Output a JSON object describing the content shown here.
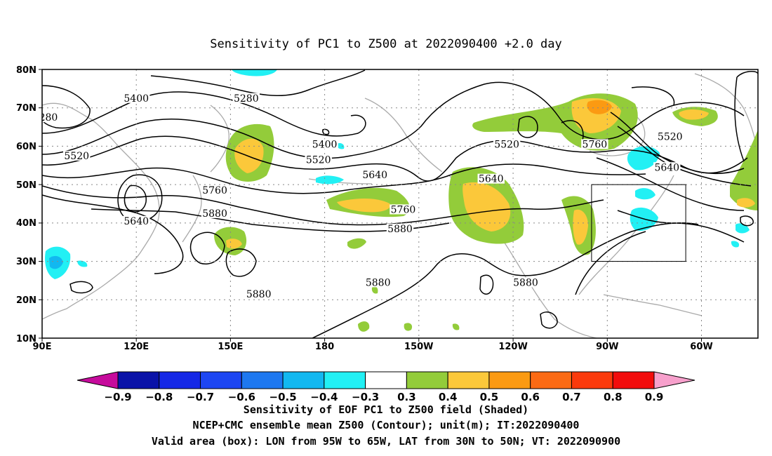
{
  "title": "Sensitivity of PC1 to Z500 at 2022090400 +2.0 day",
  "map": {
    "lat_labels": [
      "80N",
      "70N",
      "60N",
      "50N",
      "40N",
      "30N",
      "20N",
      "10N"
    ],
    "lon_labels": [
      "90E",
      "120E",
      "150E",
      "180",
      "150W",
      "120W",
      "90W",
      "60W"
    ],
    "lat_range": [
      10,
      80
    ],
    "lon_range_east": [
      90,
      318
    ],
    "gridlines": true,
    "valid_box": {
      "lon": [
        "95W",
        "65W"
      ],
      "lat": [
        "30N",
        "50N"
      ]
    }
  },
  "contour_labels": [
    {
      "text": "5400",
      "lon": 120,
      "lat": 72
    },
    {
      "text": "5280",
      "lon": 155,
      "lat": 72
    },
    {
      "text": "280",
      "lon": 92,
      "lat": 67
    },
    {
      "text": "5520",
      "lon": 101,
      "lat": 57
    },
    {
      "text": "5400",
      "lon": 180,
      "lat": 60
    },
    {
      "text": "5520",
      "lon": 178,
      "lat": 56
    },
    {
      "text": "5640",
      "lon": 196,
      "lat": 52
    },
    {
      "text": "5760",
      "lon": 145,
      "lat": 48
    },
    {
      "text": "5880",
      "lon": 145,
      "lat": 42
    },
    {
      "text": "5640",
      "lon": 120,
      "lat": 40
    },
    {
      "text": "5760",
      "lon": 205,
      "lat": 43
    },
    {
      "text": "5880",
      "lon": 204,
      "lat": 38
    },
    {
      "text": "5640",
      "lon": 233,
      "lat": 51
    },
    {
      "text": "5520",
      "lon": 238,
      "lat": 60
    },
    {
      "text": "5760",
      "lon": 266,
      "lat": 60
    },
    {
      "text": "5520",
      "lon": 290,
      "lat": 62
    },
    {
      "text": "5640",
      "lon": 289,
      "lat": 54
    },
    {
      "text": "5880",
      "lon": 159,
      "lat": 21
    },
    {
      "text": "5880",
      "lon": 197,
      "lat": 24
    },
    {
      "text": "5880",
      "lon": 244,
      "lat": 24
    }
  ],
  "colorbar": {
    "labels": [
      "-0.9",
      "-0.8",
      "-0.7",
      "-0.6",
      "-0.5",
      "-0.4",
      "-0.3",
      "0.3",
      "0.4",
      "0.5",
      "0.6",
      "0.7",
      "0.8",
      "0.9"
    ],
    "colors": [
      "#c60b9c",
      "#0a12a8",
      "#1528e6",
      "#1d46f2",
      "#1e78f0",
      "#12b8f0",
      "#22f0f4",
      "#ffffff",
      "#93cc3a",
      "#fbc83a",
      "#fb9a12",
      "#fb6a14",
      "#fb3a0c",
      "#f20c0c",
      "#f7a0cc"
    ]
  },
  "caption": [
    "Sensitivity of EOF PC1 to Z500 field (Shaded)",
    "NCEP+CMC ensemble mean Z500 (Contour); unit(m); IT:2022090400",
    "Valid area (box): LON from 95W to 65W, LAT from 30N to 50N; VT: 2022090900"
  ]
}
